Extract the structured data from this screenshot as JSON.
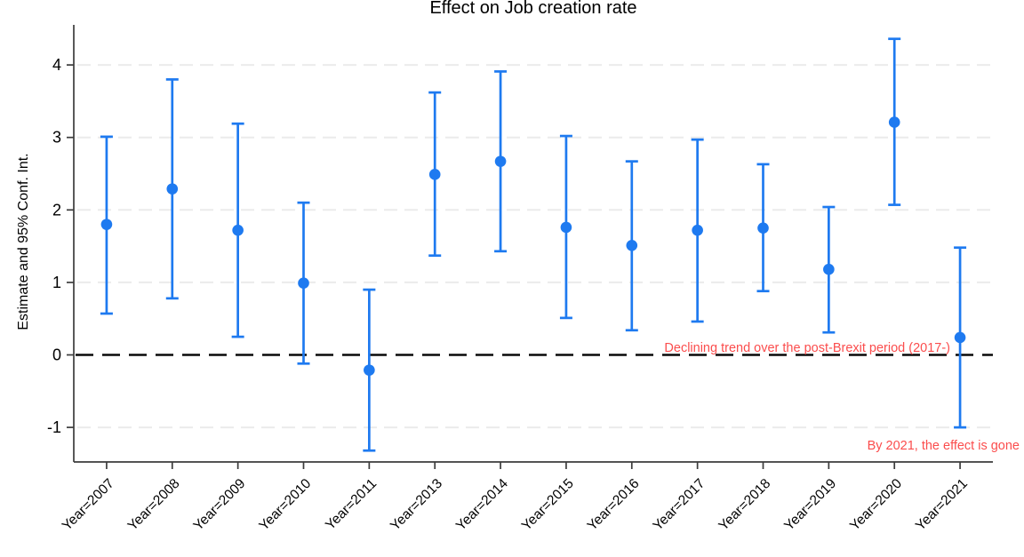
{
  "chart_data": {
    "type": "scatter",
    "subtype": "coefficient-plot-with-95ci",
    "title": "Effect on Job creation rate",
    "xlabel": "",
    "ylabel": "Estimate and 95% Conf. Int.",
    "categories": [
      "Year=2007",
      "Year=2008",
      "Year=2009",
      "Year=2010",
      "Year=2011",
      "Year=2013",
      "Year=2014",
      "Year=2015",
      "Year=2016",
      "Year=2017",
      "Year=2018",
      "Year=2019",
      "Year=2020",
      "Year=2021"
    ],
    "series": [
      {
        "name": "Estimate",
        "estimates": [
          1.8,
          2.29,
          1.72,
          0.99,
          -0.21,
          2.49,
          2.67,
          1.76,
          1.51,
          1.72,
          1.75,
          1.18,
          3.21,
          0.24
        ],
        "ci_low": [
          0.57,
          0.78,
          0.25,
          -0.12,
          -1.32,
          1.37,
          1.43,
          0.51,
          0.34,
          0.46,
          0.88,
          0.31,
          2.07,
          -1.0
        ],
        "ci_high": [
          3.01,
          3.8,
          3.19,
          2.1,
          0.9,
          3.62,
          3.91,
          3.02,
          2.67,
          2.97,
          2.63,
          2.04,
          4.36,
          1.48
        ]
      }
    ],
    "y_ticks": [
      -1,
      0,
      1,
      2,
      3,
      4
    ],
    "ylim": [
      -1.45,
      4.55
    ],
    "grid": "horizontal-light-dashed",
    "zero_reference_line": {
      "value": 0,
      "style": "black-dashed"
    },
    "legend": "none",
    "annotations": [
      {
        "text": "Declining trend over the post-Brexit period (2017-)"
      },
      {
        "text": "By 2021, the effect is gone"
      }
    ],
    "colors": {
      "marker_blue": "#1e7af0",
      "annotation_red": "#fb4d4d",
      "gridline_gray": "#ebebeb",
      "zero_line_black": "#0a0a0a",
      "axis_gray": "#3c3c3c",
      "text_black": "#000000"
    }
  }
}
